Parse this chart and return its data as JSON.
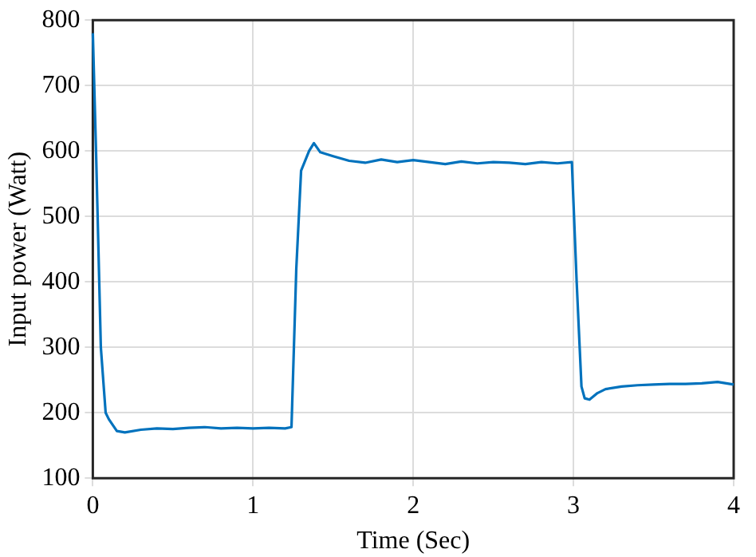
{
  "chart_data": {
    "type": "line",
    "xlabel": "Time (Sec)",
    "ylabel": "Input power (Watt)",
    "series": [
      {
        "color": "#0072bd",
        "x": [
          0,
          0.02,
          0.05,
          0.08,
          0.1,
          0.15,
          0.2,
          0.3,
          0.4,
          0.5,
          0.6,
          0.7,
          0.8,
          0.9,
          1.0,
          1.1,
          1.2,
          1.24,
          1.27,
          1.3,
          1.35,
          1.38,
          1.42,
          1.5,
          1.6,
          1.7,
          1.8,
          1.9,
          2.0,
          2.1,
          2.2,
          2.3,
          2.4,
          2.5,
          2.6,
          2.7,
          2.8,
          2.9,
          2.99,
          3.02,
          3.05,
          3.07,
          3.1,
          3.15,
          3.2,
          3.3,
          3.4,
          3.5,
          3.6,
          3.7,
          3.8,
          3.9,
          4.0
        ],
        "values": [
          780,
          600,
          300,
          200,
          190,
          172,
          170,
          174,
          176,
          175,
          177,
          178,
          176,
          177,
          176,
          177,
          176,
          178,
          420,
          570,
          600,
          612,
          598,
          592,
          585,
          582,
          587,
          583,
          586,
          583,
          580,
          584,
          581,
          583,
          582,
          580,
          583,
          581,
          583,
          400,
          240,
          222,
          220,
          230,
          236,
          240,
          242,
          243,
          244,
          244,
          245,
          247,
          243
        ]
      }
    ],
    "xlim": [
      0,
      4
    ],
    "xticks": [
      0,
      1,
      2,
      3,
      4
    ],
    "ylim": [
      100,
      800
    ],
    "yticks": [
      100,
      200,
      300,
      400,
      500,
      600,
      700,
      800
    ],
    "grid": true,
    "legend": false,
    "marker": "none",
    "line_style": "solid"
  }
}
